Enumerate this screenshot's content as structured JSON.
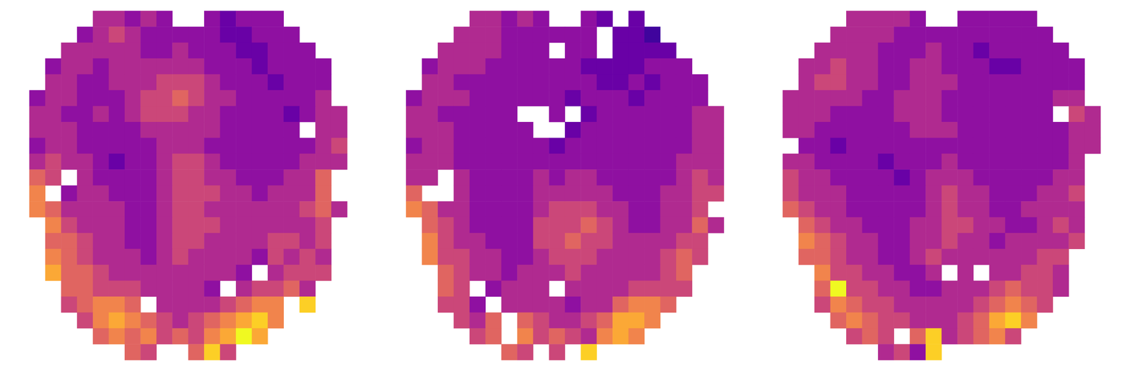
{
  "chart_data": [
    {
      "type": "heatmap",
      "tick_labels": false,
      "color_range": [
        0,
        10
      ],
      "cells": [
        [
          null,
          null,
          null,
          null,
          4,
          4,
          3,
          4,
          3,
          null,
          null,
          3,
          2,
          3,
          3,
          3,
          null,
          null,
          null,
          null
        ],
        [
          null,
          null,
          null,
          3,
          4,
          5,
          4,
          3,
          3,
          3,
          3,
          3,
          2,
          2,
          3,
          3,
          3,
          null,
          null,
          null
        ],
        [
          null,
          null,
          4,
          4,
          4,
          4,
          4,
          3,
          3,
          4,
          3,
          3,
          3,
          2,
          2,
          3,
          3,
          3,
          null,
          null
        ],
        [
          null,
          3,
          4,
          4,
          3,
          4,
          4,
          4,
          4,
          4,
          4,
          3,
          3,
          3,
          2,
          3,
          3,
          3,
          3,
          null
        ],
        [
          null,
          4,
          4,
          3,
          3,
          4,
          4,
          4,
          5,
          5,
          5,
          4,
          3,
          3,
          3,
          2,
          3,
          3,
          3,
          null
        ],
        [
          3,
          4,
          4,
          3,
          3,
          3,
          4,
          5,
          5,
          6,
          5,
          4,
          4,
          3,
          3,
          3,
          3,
          3,
          4,
          null
        ],
        [
          4,
          4,
          3,
          3,
          4,
          3,
          4,
          5,
          5,
          5,
          4,
          4,
          3,
          3,
          3,
          3,
          2,
          3,
          4,
          4
        ],
        [
          4,
          4,
          4,
          3,
          3,
          3,
          3,
          4,
          4,
          4,
          4,
          4,
          3,
          3,
          3,
          3,
          3,
          null,
          4,
          4
        ],
        [
          3,
          4,
          4,
          3,
          3,
          3,
          3,
          3,
          4,
          4,
          4,
          3,
          3,
          3,
          3,
          3,
          3,
          3,
          4,
          5
        ],
        [
          4,
          5,
          4,
          4,
          3,
          2,
          3,
          3,
          4,
          5,
          5,
          4,
          3,
          3,
          3,
          3,
          3,
          4,
          4,
          4
        ],
        [
          6,
          5,
          null,
          4,
          3,
          3,
          3,
          3,
          4,
          5,
          5,
          4,
          4,
          3,
          3,
          3,
          4,
          4,
          6,
          null
        ],
        [
          7,
          null,
          3,
          4,
          4,
          3,
          3,
          3,
          4,
          5,
          5,
          5,
          4,
          4,
          3,
          4,
          4,
          4,
          6,
          null
        ],
        [
          7,
          6,
          4,
          4,
          4,
          4,
          3,
          3,
          4,
          5,
          5,
          4,
          4,
          4,
          4,
          4,
          4,
          5,
          6,
          4
        ],
        [
          null,
          7,
          5,
          4,
          4,
          4,
          3,
          3,
          4,
          5,
          5,
          5,
          4,
          4,
          4,
          4,
          4,
          4,
          5,
          null
        ],
        [
          null,
          6,
          6,
          5,
          4,
          4,
          3,
          3,
          4,
          5,
          5,
          4,
          4,
          4,
          4,
          5,
          5,
          4,
          5,
          null
        ],
        [
          null,
          7,
          6,
          5,
          4,
          4,
          4,
          3,
          4,
          5,
          4,
          4,
          4,
          4,
          3,
          5,
          4,
          5,
          4,
          null
        ],
        [
          null,
          8,
          6,
          6,
          5,
          4,
          4,
          4,
          4,
          4,
          4,
          4,
          4,
          3,
          null,
          4,
          5,
          5,
          5,
          null
        ],
        [
          null,
          null,
          6,
          6,
          5,
          5,
          5,
          4,
          4,
          4,
          4,
          3,
          null,
          4,
          5,
          5,
          6,
          4,
          null,
          null
        ],
        [
          null,
          null,
          5,
          6,
          7,
          7,
          6,
          null,
          4,
          4,
          4,
          4,
          5,
          6,
          7,
          7,
          null,
          9,
          null,
          null
        ],
        [
          null,
          null,
          null,
          5,
          7,
          8,
          7,
          6,
          5,
          4,
          5,
          6,
          7,
          8,
          9,
          7,
          null,
          null,
          null,
          null
        ],
        [
          null,
          null,
          null,
          null,
          6,
          7,
          6,
          7,
          5,
          6,
          5,
          7,
          8,
          10,
          8,
          null,
          null,
          null,
          null,
          null
        ],
        [
          null,
          null,
          null,
          null,
          null,
          null,
          6,
          5,
          null,
          null,
          6,
          9,
          5,
          null,
          null,
          null,
          null,
          null,
          null,
          null
        ]
      ]
    },
    {
      "type": "heatmap",
      "tick_labels": false,
      "color_range": [
        0,
        10
      ],
      "cells": [
        [
          null,
          null,
          null,
          null,
          4,
          4,
          3,
          4,
          3,
          null,
          null,
          3,
          2,
          null,
          2,
          null,
          null,
          null,
          null,
          null
        ],
        [
          null,
          null,
          null,
          4,
          4,
          4,
          3,
          3,
          3,
          3,
          3,
          3,
          null,
          2,
          2,
          1,
          null,
          null,
          null,
          null
        ],
        [
          null,
          null,
          4,
          4,
          4,
          4,
          3,
          3,
          3,
          null,
          3,
          3,
          null,
          2,
          2,
          2,
          2,
          null,
          null,
          null
        ],
        [
          null,
          3,
          4,
          4,
          4,
          3,
          3,
          3,
          3,
          3,
          3,
          2,
          2,
          2,
          2,
          3,
          3,
          3,
          null,
          null
        ],
        [
          null,
          4,
          4,
          3,
          3,
          3,
          3,
          3,
          3,
          3,
          3,
          3,
          2,
          2,
          3,
          2,
          3,
          3,
          3,
          null
        ],
        [
          3,
          4,
          4,
          4,
          3,
          3,
          3,
          3,
          3,
          3,
          2,
          3,
          3,
          3,
          2,
          3,
          3,
          3,
          3,
          null
        ],
        [
          4,
          4,
          3,
          3,
          3,
          3,
          3,
          null,
          null,
          3,
          null,
          2,
          3,
          3,
          3,
          3,
          3,
          3,
          4,
          4
        ],
        [
          4,
          4,
          4,
          3,
          3,
          3,
          3,
          3,
          null,
          null,
          2,
          3,
          3,
          3,
          3,
          3,
          3,
          3,
          4,
          4
        ],
        [
          3,
          4,
          4,
          3,
          3,
          3,
          3,
          3,
          3,
          2,
          3,
          3,
          3,
          3,
          3,
          3,
          3,
          3,
          4,
          4
        ],
        [
          4,
          4,
          4,
          3,
          3,
          3,
          3,
          3,
          3,
          3,
          3,
          3,
          3,
          3,
          3,
          3,
          3,
          4,
          4,
          4
        ],
        [
          4,
          4,
          null,
          4,
          3,
          3,
          3,
          3,
          4,
          3,
          4,
          4,
          3,
          3,
          3,
          3,
          3,
          4,
          5,
          4
        ],
        [
          6,
          null,
          null,
          4,
          3,
          3,
          3,
          3,
          4,
          4,
          4,
          4,
          4,
          3,
          3,
          3,
          4,
          4,
          5,
          5
        ],
        [
          7,
          6,
          4,
          4,
          3,
          3,
          3,
          3,
          4,
          5,
          5,
          5,
          4,
          4,
          3,
          3,
          4,
          4,
          5,
          null
        ],
        [
          null,
          6,
          5,
          4,
          3,
          3,
          3,
          3,
          5,
          5,
          5,
          6,
          5,
          4,
          3,
          3,
          4,
          4,
          6,
          4
        ],
        [
          null,
          7,
          5,
          4,
          4,
          3,
          3,
          3,
          5,
          5,
          6,
          5,
          5,
          4,
          4,
          4,
          4,
          5,
          5,
          null
        ],
        [
          null,
          7,
          5,
          5,
          4,
          4,
          3,
          3,
          4,
          5,
          5,
          5,
          4,
          4,
          4,
          4,
          5,
          6,
          5,
          null
        ],
        [
          null,
          null,
          6,
          5,
          4,
          4,
          3,
          4,
          4,
          4,
          5,
          4,
          4,
          4,
          4,
          4,
          5,
          6,
          null,
          null
        ],
        [
          null,
          null,
          6,
          5,
          null,
          3,
          4,
          4,
          4,
          null,
          4,
          4,
          4,
          4,
          5,
          5,
          5,
          5,
          null,
          null
        ],
        [
          null,
          null,
          5,
          5,
          3,
          null,
          4,
          4,
          4,
          4,
          3,
          4,
          4,
          6,
          7,
          7,
          6,
          null,
          null,
          null
        ],
        [
          null,
          null,
          null,
          5,
          4,
          6,
          null,
          6,
          5,
          4,
          4,
          5,
          6,
          8,
          8,
          7,
          null,
          null,
          null,
          null
        ],
        [
          null,
          null,
          null,
          null,
          5,
          6,
          null,
          7,
          5,
          6,
          5,
          4,
          7,
          8,
          7,
          null,
          null,
          null,
          null,
          null
        ],
        [
          null,
          null,
          null,
          null,
          null,
          null,
          6,
          5,
          null,
          5,
          null,
          9,
          null,
          null,
          null,
          null,
          null,
          null,
          null,
          null
        ]
      ]
    },
    {
      "type": "heatmap",
      "tick_labels": false,
      "color_range": [
        0,
        10
      ],
      "cells": [
        [
          null,
          null,
          null,
          null,
          4,
          4,
          4,
          4,
          3,
          null,
          null,
          3,
          3,
          3,
          3,
          3,
          null,
          null,
          null,
          null
        ],
        [
          null,
          null,
          null,
          4,
          4,
          4,
          4,
          3,
          3,
          3,
          3,
          3,
          3,
          3,
          3,
          3,
          3,
          null,
          null,
          null
        ],
        [
          null,
          null,
          4,
          4,
          4,
          4,
          3,
          3,
          3,
          4,
          3,
          3,
          2,
          3,
          3,
          3,
          3,
          3,
          null,
          null
        ],
        [
          null,
          4,
          4,
          5,
          4,
          4,
          3,
          3,
          4,
          4,
          3,
          3,
          3,
          2,
          2,
          3,
          3,
          3,
          3,
          null
        ],
        [
          null,
          4,
          5,
          5,
          4,
          4,
          3,
          3,
          4,
          4,
          4,
          3,
          3,
          3,
          3,
          3,
          3,
          3,
          3,
          null
        ],
        [
          4,
          4,
          4,
          4,
          4,
          3,
          3,
          4,
          4,
          4,
          3,
          3,
          3,
          3,
          3,
          3,
          3,
          4,
          4,
          null
        ],
        [
          4,
          4,
          4,
          3,
          3,
          3,
          3,
          4,
          4,
          4,
          3,
          3,
          3,
          3,
          3,
          3,
          3,
          null,
          5,
          4
        ],
        [
          4,
          4,
          3,
          3,
          3,
          3,
          3,
          3,
          4,
          4,
          4,
          3,
          3,
          3,
          3,
          3,
          3,
          3,
          4,
          4
        ],
        [
          null,
          3,
          3,
          2,
          3,
          3,
          3,
          3,
          3,
          3,
          3,
          3,
          3,
          3,
          3,
          3,
          3,
          3,
          4,
          4
        ],
        [
          4,
          4,
          3,
          3,
          3,
          3,
          2,
          3,
          3,
          3,
          4,
          3,
          3,
          3,
          3,
          3,
          3,
          3,
          4,
          null
        ],
        [
          5,
          4,
          4,
          3,
          3,
          3,
          3,
          2,
          3,
          4,
          4,
          4,
          3,
          3,
          3,
          3,
          3,
          4,
          4,
          null
        ],
        [
          5,
          4,
          4,
          4,
          3,
          3,
          3,
          3,
          3,
          4,
          5,
          4,
          4,
          3,
          3,
          3,
          4,
          4,
          5,
          null
        ],
        [
          6,
          5,
          4,
          4,
          3,
          3,
          3,
          3,
          3,
          4,
          5,
          4,
          4,
          3,
          3,
          4,
          4,
          4,
          4,
          null
        ],
        [
          null,
          6,
          5,
          4,
          4,
          3,
          3,
          3,
          4,
          4,
          5,
          5,
          4,
          4,
          3,
          3,
          4,
          5,
          4,
          null
        ],
        [
          null,
          7,
          6,
          5,
          4,
          4,
          3,
          3,
          4,
          4,
          5,
          4,
          4,
          3,
          4,
          4,
          4,
          4,
          5,
          null
        ],
        [
          null,
          6,
          6,
          5,
          4,
          4,
          3,
          3,
          4,
          5,
          4,
          4,
          4,
          4,
          4,
          4,
          5,
          5,
          null,
          null
        ],
        [
          null,
          null,
          7,
          5,
          5,
          4,
          4,
          3,
          3,
          4,
          null,
          4,
          null,
          4,
          4,
          5,
          5,
          4,
          null,
          null
        ],
        [
          null,
          null,
          6,
          10,
          5,
          5,
          4,
          4,
          3,
          3,
          4,
          4,
          4,
          5,
          6,
          5,
          5,
          4,
          null,
          null
        ],
        [
          null,
          null,
          5,
          7,
          6,
          5,
          5,
          4,
          4,
          4,
          4,
          4,
          5,
          6,
          7,
          6,
          5,
          null,
          null,
          null
        ],
        [
          null,
          null,
          null,
          6,
          7,
          6,
          5,
          5,
          4,
          4,
          4,
          5,
          6,
          8,
          9,
          7,
          null,
          null,
          null,
          null
        ],
        [
          null,
          null,
          null,
          null,
          5,
          6,
          5,
          null,
          6,
          9,
          4,
          5,
          6,
          7,
          5,
          null,
          null,
          null,
          null,
          null
        ],
        [
          null,
          null,
          null,
          null,
          null,
          null,
          4,
          5,
          3,
          9,
          null,
          null,
          null,
          null,
          null,
          null,
          null,
          null,
          null,
          null
        ]
      ]
    }
  ]
}
